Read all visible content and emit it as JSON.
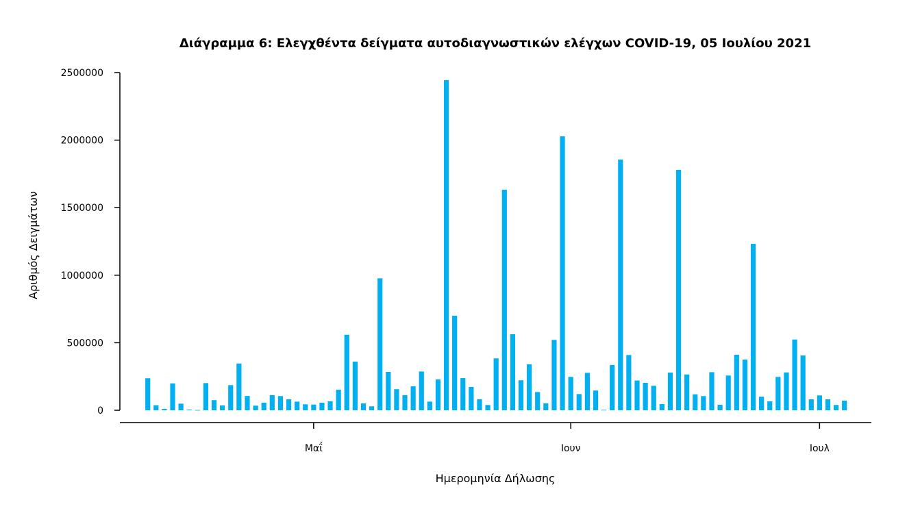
{
  "chart_data": {
    "type": "bar",
    "title": "Διάγραμμα 6: Ελεγχθέντα δείγματα αυτοδιαγνωστικών ελέγχων COVID-19, 05 Ιουλίου 2021",
    "xlabel": "Ημερομηνία Δήλωσης",
    "ylabel": "Αριθμός Δειγμάτων",
    "ylim": [
      0,
      2500000
    ],
    "xlim": [
      "2021-04-08",
      "2021-07-07"
    ],
    "grid": false,
    "bar_color": "#00B0F0",
    "y_ticks": [
      0,
      500000,
      1000000,
      1500000,
      2000000,
      2500000
    ],
    "y_tick_labels": [
      "0",
      "500000",
      "1000000",
      "1500000",
      "2000000",
      "2500000"
    ],
    "x_ticks": [
      {
        "date": "2021-05-01",
        "label": "Μαΐ"
      },
      {
        "date": "2021-06-01",
        "label": "Ιουν"
      },
      {
        "date": "2021-07-01",
        "label": "Ιουλ"
      }
    ],
    "x": [
      "2021-04-11",
      "2021-04-12",
      "2021-04-13",
      "2021-04-14",
      "2021-04-15",
      "2021-04-16",
      "2021-04-17",
      "2021-04-18",
      "2021-04-19",
      "2021-04-20",
      "2021-04-21",
      "2021-04-22",
      "2021-04-23",
      "2021-04-24",
      "2021-04-25",
      "2021-04-26",
      "2021-04-27",
      "2021-04-28",
      "2021-04-29",
      "2021-04-30",
      "2021-05-01",
      "2021-05-02",
      "2021-05-03",
      "2021-05-04",
      "2021-05-05",
      "2021-05-06",
      "2021-05-07",
      "2021-05-08",
      "2021-05-09",
      "2021-05-10",
      "2021-05-11",
      "2021-05-12",
      "2021-05-13",
      "2021-05-14",
      "2021-05-15",
      "2021-05-16",
      "2021-05-17",
      "2021-05-18",
      "2021-05-19",
      "2021-05-20",
      "2021-05-21",
      "2021-05-22",
      "2021-05-23",
      "2021-05-24",
      "2021-05-25",
      "2021-05-26",
      "2021-05-27",
      "2021-05-28",
      "2021-05-29",
      "2021-05-30",
      "2021-05-31",
      "2021-06-01",
      "2021-06-02",
      "2021-06-03",
      "2021-06-04",
      "2021-06-05",
      "2021-06-06",
      "2021-06-07",
      "2021-06-08",
      "2021-06-09",
      "2021-06-10",
      "2021-06-11",
      "2021-06-12",
      "2021-06-13",
      "2021-06-14",
      "2021-06-15",
      "2021-06-16",
      "2021-06-17",
      "2021-06-18",
      "2021-06-19",
      "2021-06-20",
      "2021-06-21",
      "2021-06-22",
      "2021-06-23",
      "2021-06-24",
      "2021-06-25",
      "2021-06-26",
      "2021-06-27",
      "2021-06-28",
      "2021-06-29",
      "2021-06-30",
      "2021-07-01",
      "2021-07-02",
      "2021-07-03",
      "2021-07-04"
    ],
    "values": [
      237000,
      37000,
      10000,
      199000,
      49000,
      5000,
      2000,
      201000,
      75000,
      36000,
      186000,
      346000,
      106000,
      34000,
      56000,
      112000,
      105000,
      81000,
      64000,
      44000,
      42000,
      56000,
      66000,
      152000,
      559000,
      360000,
      51000,
      29000,
      977000,
      284000,
      156000,
      112000,
      177000,
      287000,
      64000,
      228000,
      2444000,
      700000,
      238000,
      172000,
      81000,
      39000,
      384000,
      1633000,
      563000,
      222000,
      340000,
      135000,
      51000,
      521000,
      2028000,
      247000,
      120000,
      277000,
      146000,
      3000,
      335000,
      1856000,
      409000,
      220000,
      203000,
      181000,
      46000,
      279000,
      1780000,
      265000,
      118000,
      105000,
      282000,
      41000,
      257000,
      411000,
      375000,
      1232000,
      100000,
      66000,
      247000,
      280000,
      524000,
      406000,
      81000,
      110000,
      81000,
      39000,
      71000
    ]
  }
}
